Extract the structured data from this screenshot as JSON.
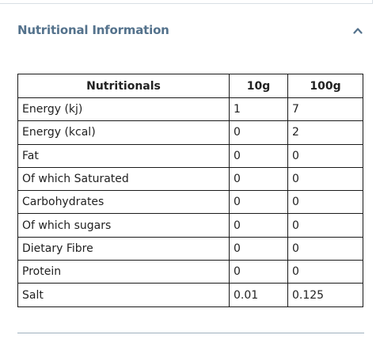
{
  "section": {
    "title": "Nutritional Information",
    "toggle_icon": "chevron-up-icon",
    "expanded": true,
    "title_color": "#54728c"
  },
  "table": {
    "headers": [
      "Nutritionals",
      "10g",
      "100g"
    ],
    "rows": [
      [
        "Energy (kj)",
        "1",
        "7"
      ],
      [
        "Energy (kcal)",
        "0",
        "2"
      ],
      [
        "Fat",
        "0",
        "0"
      ],
      [
        "Of which Saturated",
        "0",
        "0"
      ],
      [
        "Carbohydrates",
        "0",
        "0"
      ],
      [
        "Of which sugars",
        "0",
        "0"
      ],
      [
        "Dietary Fibre",
        "0",
        "0"
      ],
      [
        "Protein",
        "0",
        "0"
      ],
      [
        "Salt",
        "0.01",
        "0.125"
      ]
    ]
  }
}
